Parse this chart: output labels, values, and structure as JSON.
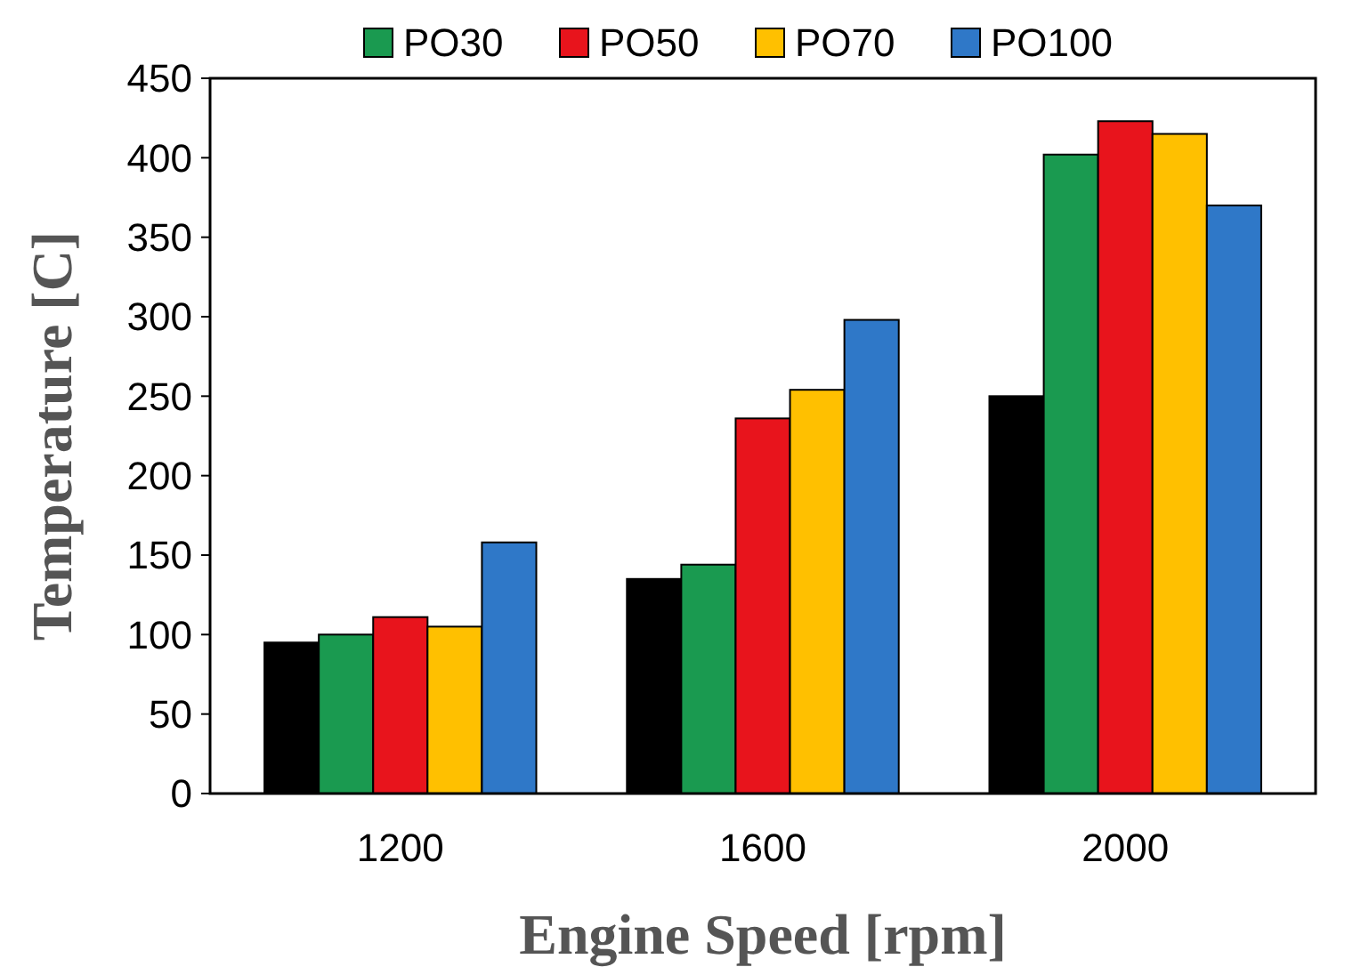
{
  "chart_data": {
    "type": "bar",
    "xlabel": "Engine Speed [rpm]",
    "ylabel": "Temperature [C]",
    "categories": [
      "1200",
      "1600",
      "2000"
    ],
    "series": [
      {
        "color": "#000000",
        "values": [
          95,
          135,
          250
        ]
      },
      {
        "name": "PO30",
        "color": "#1a9a50",
        "values": [
          100,
          144,
          402
        ]
      },
      {
        "name": "PO50",
        "color": "#e8141c",
        "values": [
          111,
          236,
          423
        ]
      },
      {
        "name": "PO70",
        "color": "#ffc000",
        "values": [
          105,
          254,
          415
        ]
      },
      {
        "name": "PO100",
        "color": "#2f78c8",
        "values": [
          158,
          298,
          370
        ]
      }
    ],
    "ylim": [
      0,
      450
    ],
    "yticks": [
      0,
      50,
      100,
      150,
      200,
      250,
      300,
      350,
      400,
      450
    ],
    "grid": false,
    "legend": "top"
  }
}
